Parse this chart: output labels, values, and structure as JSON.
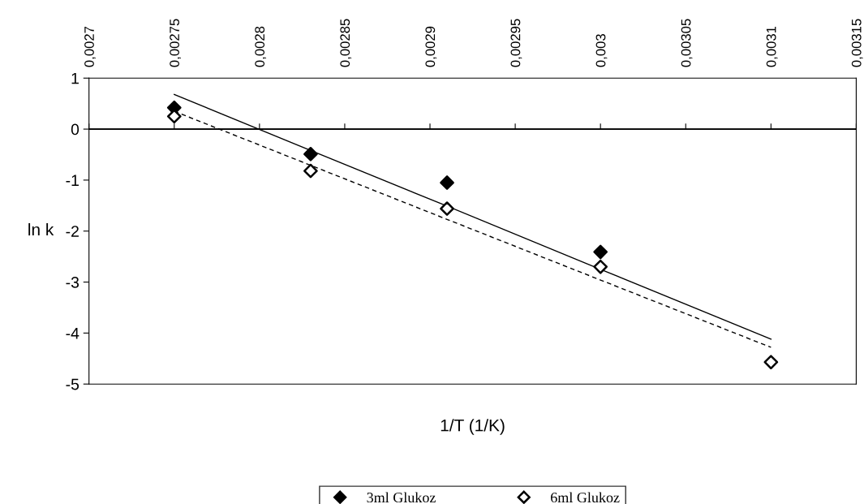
{
  "chart_data": {
    "type": "scatter",
    "xlabel": "1/T (1/K)",
    "ylabel": "ln k",
    "x": [
      0.00275,
      0.00283,
      0.00291,
      0.003,
      0.0031
    ],
    "series": [
      {
        "name": "3ml Glukoz",
        "type": "scatter",
        "color": "#000000",
        "values": [
          0.42,
          -0.49,
          -1.05,
          -2.41,
          null
        ]
      },
      {
        "name": "6ml Glukoz",
        "type": "scatter",
        "color": "#ffffff",
        "values": [
          0.25,
          -0.82,
          -1.56,
          -2.7,
          -4.57
        ]
      },
      {
        "type": "line",
        "marker": "none",
        "color": "#000000",
        "line_style": "solid",
        "values": [
          0.68,
          -0.42,
          -1.51,
          -2.75,
          -4.12
        ]
      },
      {
        "type": "line",
        "marker": "none",
        "color": "#000000",
        "line_style": "dashed",
        "values": [
          0.35,
          -0.71,
          -1.77,
          -2.96,
          -4.28
        ]
      }
    ],
    "marker": "diamond",
    "xlim": [
      0.0027,
      0.00315
    ],
    "xticks": [
      {
        "value": 0.0027,
        "label": "0,0027"
      },
      {
        "value": 0.00275,
        "label": "0,00275"
      },
      {
        "value": 0.0028,
        "label": "0,0028"
      },
      {
        "value": 0.00285,
        "label": "0,00285"
      },
      {
        "value": 0.0029,
        "label": "0,0029"
      },
      {
        "value": 0.00295,
        "label": "0,00295"
      },
      {
        "value": 0.003,
        "label": "0,003"
      },
      {
        "value": 0.00305,
        "label": "0,00305"
      },
      {
        "value": 0.0031,
        "label": "0,0031"
      },
      {
        "value": 0.00315,
        "label": "0,00315"
      }
    ],
    "ylim": [
      -5,
      1
    ],
    "yticks": [
      -5,
      -4,
      -3,
      -2,
      -1,
      0,
      1
    ],
    "ref_lines": [
      {
        "axis": "y",
        "value": 0
      }
    ],
    "grid": false,
    "legend": "bottom"
  }
}
